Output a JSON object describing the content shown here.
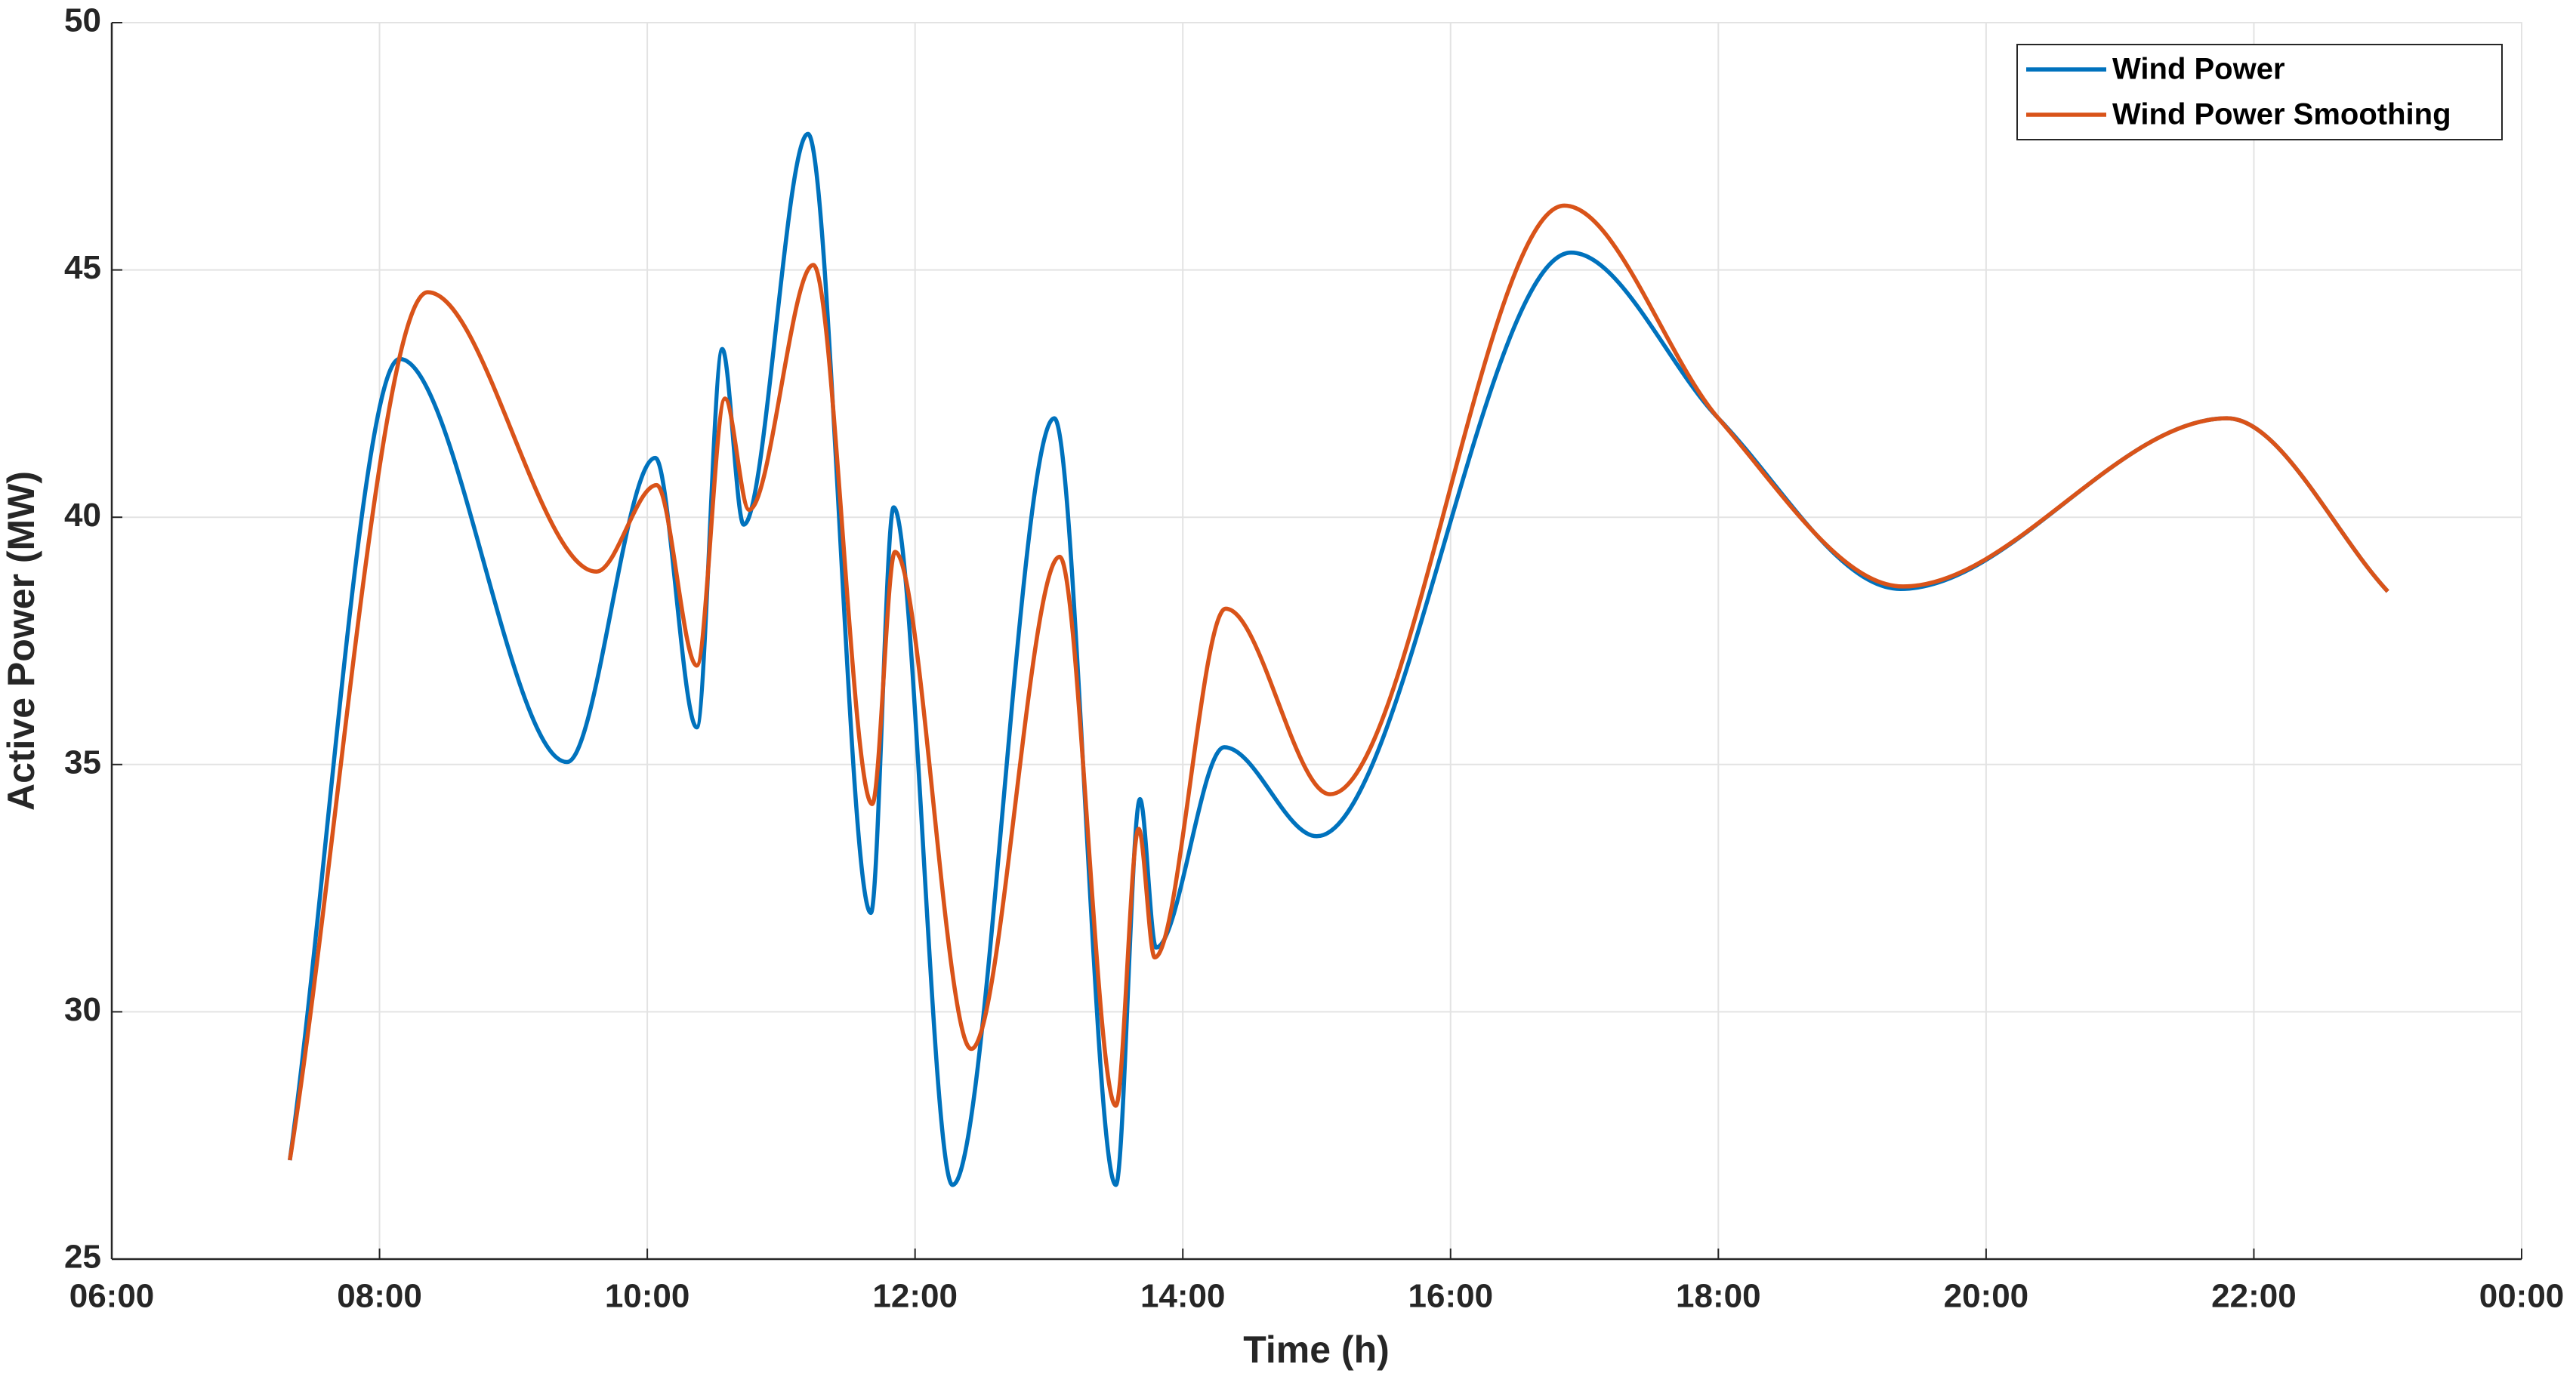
{
  "chart_data": {
    "type": "line",
    "xlabel": "Time (h)",
    "ylabel": "Active Power (MW)",
    "xlim": [
      6,
      24
    ],
    "xticks": [
      {
        "value": 6,
        "label": "06:00"
      },
      {
        "value": 8,
        "label": "08:00"
      },
      {
        "value": 10,
        "label": "10:00"
      },
      {
        "value": 12,
        "label": "12:00"
      },
      {
        "value": 14,
        "label": "14:00"
      },
      {
        "value": 16,
        "label": "16:00"
      },
      {
        "value": 18,
        "label": "18:00"
      },
      {
        "value": 20,
        "label": "20:00"
      },
      {
        "value": 22,
        "label": "22:00"
      },
      {
        "value": 24,
        "label": "00:00"
      }
    ],
    "ylim": [
      25,
      50
    ],
    "yticks": [
      25,
      30,
      35,
      40,
      45,
      50
    ],
    "grid": true,
    "legend": "northeast",
    "series": [
      {
        "name": "Wind Power",
        "color": "#0072BD",
        "x": [
          7.33,
          8.15,
          9.4,
          10.06,
          10.37,
          10.56,
          10.72,
          11.2,
          11.67,
          11.84,
          12.28,
          13.04,
          13.5,
          13.68,
          13.8,
          14.31,
          15.0,
          16.9,
          18.0,
          19.36,
          21.8,
          23.0
        ],
        "values": [
          27.0,
          43.2,
          35.05,
          41.2,
          35.75,
          43.4,
          39.85,
          47.75,
          32.0,
          40.2,
          26.5,
          42.0,
          26.5,
          34.3,
          31.3,
          35.35,
          33.55,
          45.35,
          42.0,
          38.55,
          42.0,
          38.5
        ]
      },
      {
        "name": "Wind Power Smoothing",
        "color": "#D95319",
        "x": [
          7.33,
          8.36,
          9.62,
          10.07,
          10.37,
          10.58,
          10.76,
          11.24,
          11.68,
          11.85,
          12.42,
          13.08,
          13.5,
          13.67,
          13.79,
          14.32,
          15.1,
          16.85,
          18.0,
          19.38,
          21.8,
          23.0
        ],
        "values": [
          27.0,
          44.55,
          38.9,
          40.65,
          37.0,
          42.4,
          40.15,
          45.1,
          34.2,
          39.3,
          29.25,
          39.2,
          28.1,
          33.7,
          31.1,
          38.15,
          34.4,
          46.3,
          42.0,
          38.6,
          42.0,
          38.5
        ]
      }
    ]
  }
}
